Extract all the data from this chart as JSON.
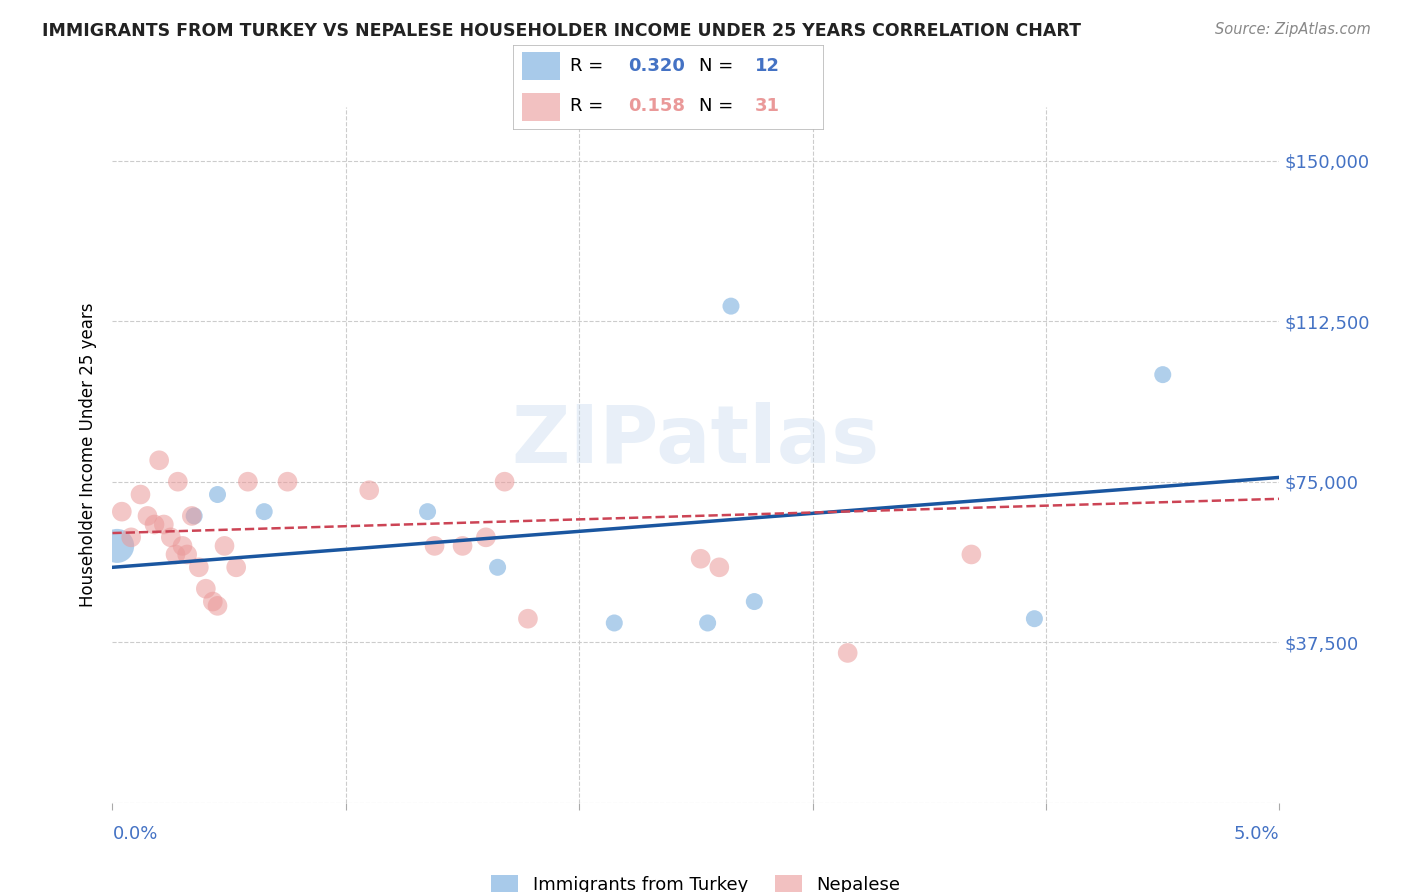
{
  "title": "IMMIGRANTS FROM TURKEY VS NEPALESE HOUSEHOLDER INCOME UNDER 25 YEARS CORRELATION CHART",
  "source": "Source: ZipAtlas.com",
  "ylabel": "Householder Income Under 25 years",
  "yticks": [
    0,
    37500,
    75000,
    112500,
    150000
  ],
  "ytick_labels": [
    "",
    "$37,500",
    "$75,000",
    "$112,500",
    "$150,000"
  ],
  "xlim": [
    0.0,
    5.0
  ],
  "ylim": [
    0,
    162500
  ],
  "blue_label": "Immigrants from Turkey",
  "pink_label": "Nepalese",
  "blue_R": "0.320",
  "blue_N": "12",
  "pink_R": "0.158",
  "pink_N": "31",
  "blue_x": [
    0.02,
    0.35,
    0.45,
    0.65,
    1.35,
    1.65,
    2.15,
    2.55,
    2.65,
    2.75,
    3.95,
    4.5
  ],
  "blue_y": [
    60000,
    67000,
    72000,
    68000,
    68000,
    55000,
    42000,
    42000,
    116000,
    47000,
    43000,
    100000
  ],
  "blue_size": [
    600,
    150,
    150,
    150,
    150,
    150,
    150,
    150,
    150,
    150,
    150,
    150
  ],
  "pink_x": [
    0.04,
    0.08,
    0.12,
    0.15,
    0.18,
    0.2,
    0.22,
    0.25,
    0.27,
    0.28,
    0.3,
    0.32,
    0.34,
    0.37,
    0.4,
    0.43,
    0.45,
    0.48,
    0.53,
    0.58,
    0.75,
    1.1,
    1.38,
    1.5,
    1.6,
    1.68,
    1.78,
    2.52,
    2.6,
    3.15,
    3.68
  ],
  "pink_y": [
    68000,
    62000,
    72000,
    67000,
    65000,
    80000,
    65000,
    62000,
    58000,
    75000,
    60000,
    58000,
    67000,
    55000,
    50000,
    47000,
    46000,
    60000,
    55000,
    75000,
    75000,
    73000,
    60000,
    60000,
    62000,
    75000,
    43000,
    57000,
    55000,
    35000,
    58000
  ],
  "blue_color": "#6fa8dc",
  "pink_color": "#ea9999",
  "blue_line_color": "#1a56a0",
  "pink_line_color": "#cc4455",
  "watermark": "ZIPatlas",
  "background_color": "#ffffff",
  "grid_color": "#cccccc",
  "axis_label_color": "#4472c4",
  "title_color": "#222222",
  "source_color": "#888888"
}
